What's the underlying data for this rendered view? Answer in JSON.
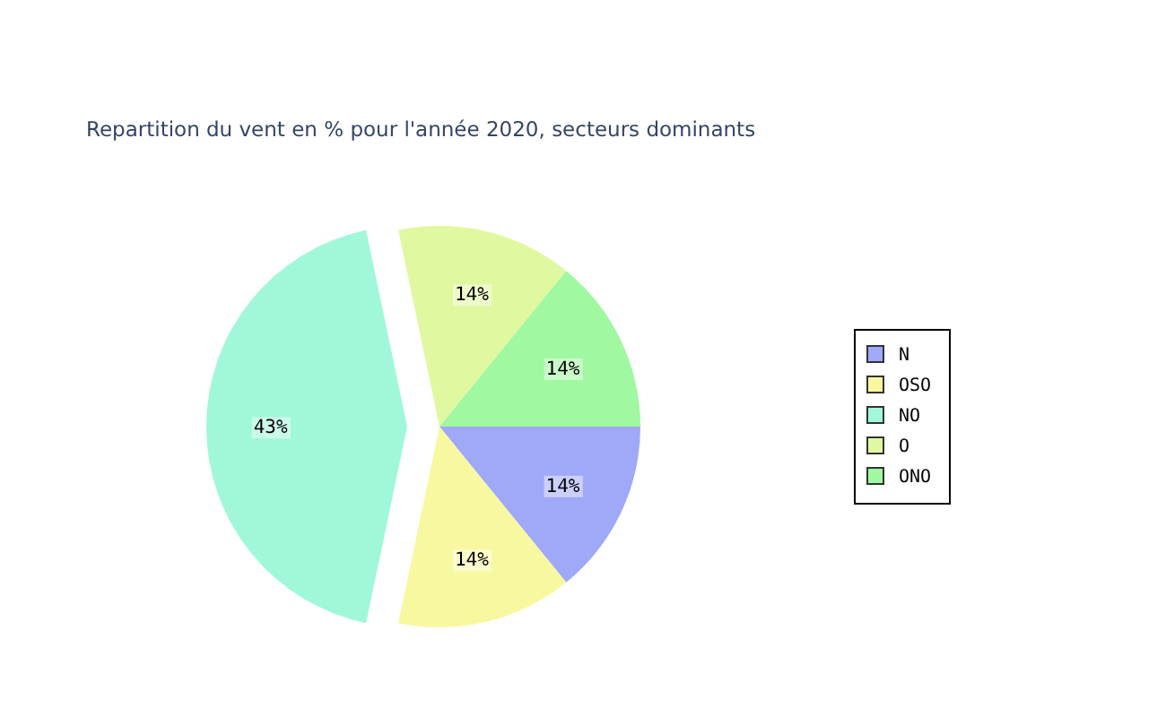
{
  "chart_data": {
    "type": "pie",
    "title": "Repartition du vent en % pour l'année 2020, secteurs dominants",
    "categories": [
      "N",
      "OSO",
      "NO",
      "O",
      "ONO"
    ],
    "values": [
      14,
      14,
      43,
      14,
      14
    ],
    "colors": [
      "#a0a8f8",
      "#f8f8a0",
      "#a0f8d8",
      "#e0f8a0",
      "#a0f8a0"
    ],
    "value_labels": [
      "14%",
      "14%",
      "43%",
      "14%",
      "14%"
    ],
    "legend": "right"
  }
}
